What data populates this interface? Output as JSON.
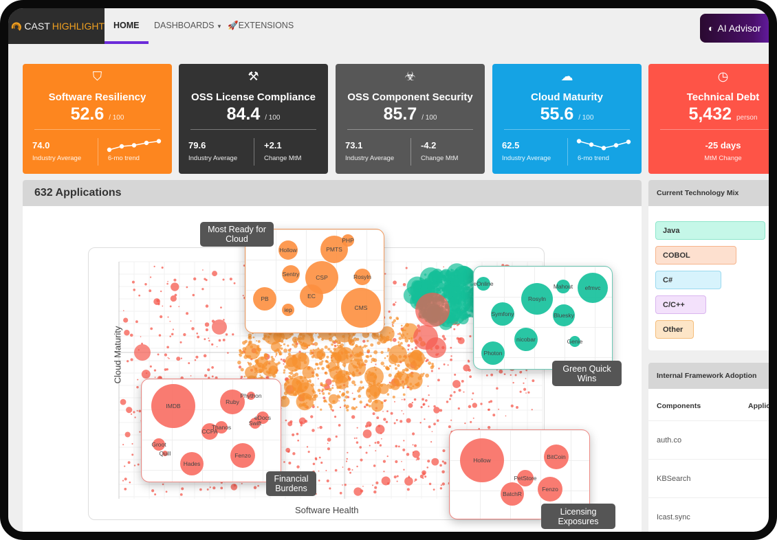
{
  "nav": {
    "brand_a": "CAST",
    "brand_b": "HIGHLIGHT",
    "home": "HOME",
    "dashboards": "DASHBOARDS",
    "extensions": "EXTENSIONS",
    "ai_advisor": "AI Advisor",
    "accent": "#6b2bd9"
  },
  "cards": [
    {
      "title": "Software Resiliency",
      "value": "52.6",
      "unit": "/ 100",
      "left_value": "74.0",
      "left_label": "Industry Average",
      "right_label": "6-mo trend",
      "trend": [
        1,
        2,
        2.3,
        3,
        3.5
      ],
      "color": "#fd861f",
      "icon": "shield-icon"
    },
    {
      "title": "OSS License Compliance",
      "value": "84.4",
      "unit": "/ 100",
      "left_value": "79.6",
      "left_label": "Industry Average",
      "right_value": "+2.1",
      "right_label": "Change MtM",
      "color": "#333333",
      "icon": "gavel-icon"
    },
    {
      "title": "OSS Component Security",
      "value": "85.7",
      "unit": "/ 100",
      "left_value": "73.1",
      "left_label": "Industry Average",
      "right_value": "-4.2",
      "right_label": "Change MtM",
      "color": "#575757",
      "icon": "bug-icon"
    },
    {
      "title": "Cloud Maturity",
      "value": "55.6",
      "unit": "/ 100",
      "left_value": "62.5",
      "left_label": "Industry Average",
      "right_label": "6-mo trend",
      "trend": [
        3.5,
        2.5,
        1.5,
        2.3,
        3.3
      ],
      "color": "#15a3e4",
      "icon": "cloud-icon"
    },
    {
      "title": "Technical Debt",
      "value": "5,432",
      "unit": "person",
      "center_value": "-25 days",
      "center_label": "MtM Change",
      "color": "#fe5447",
      "icon": "clock-icon"
    }
  ],
  "applications": {
    "title": "632 Applications",
    "x_axis": "Software Health",
    "y_axis": "Cloud Maturity",
    "groups": [
      {
        "label": "Most Ready for Cloud",
        "color": "#fd8f3f",
        "names": [
          "Hollow",
          "PMTS",
          "PHP",
          "Sentry",
          "CSP",
          "Rosyln",
          "PB",
          "EC",
          "iep",
          "CMS"
        ]
      },
      {
        "label": "Green Quick Wins",
        "color": "#12c09a",
        "names": [
          "eOnline",
          "Rosyln",
          "Mahout",
          "efmvc",
          "Symfony",
          "Bluesky",
          "nicobar",
          "Genie",
          "Photon"
        ]
      },
      {
        "label": "Financial Burdens",
        "color": "#f86d62",
        "names": [
          "IMDB",
          "Ruby",
          "Phython",
          "eDocs",
          "Swift",
          "Thanos",
          "CCPA",
          "Groot",
          "Quill",
          "Hades",
          "Fenzo"
        ]
      },
      {
        "label": "Licensing Exposures",
        "color": "#f86d62",
        "names": [
          "Hollow",
          "BitCoin",
          "PetStore",
          "BatchR",
          "Fenzo"
        ]
      }
    ]
  },
  "tech_mix": {
    "title": "Current Technology Mix",
    "items": [
      {
        "label": "Java",
        "bg": "#c5f7e8",
        "border": "#8de6cb"
      },
      {
        "label": "COBOL",
        "bg": "#fde0cf",
        "border": "#f6b48c"
      },
      {
        "label": "C#",
        "bg": "#d7f3fc",
        "border": "#9ad9ef"
      },
      {
        "label": "C/C++",
        "bg": "#f3e1fb",
        "border": "#d9b5ef"
      },
      {
        "label": "Other",
        "bg": "#fde5c7",
        "border": "#f5bd7a"
      }
    ]
  },
  "framework": {
    "title": "Internal Framework Adoption",
    "col_components": "Components",
    "col_applications": "Applic",
    "rows": [
      "auth.co",
      "KBSearch",
      "Icast.sync"
    ]
  }
}
